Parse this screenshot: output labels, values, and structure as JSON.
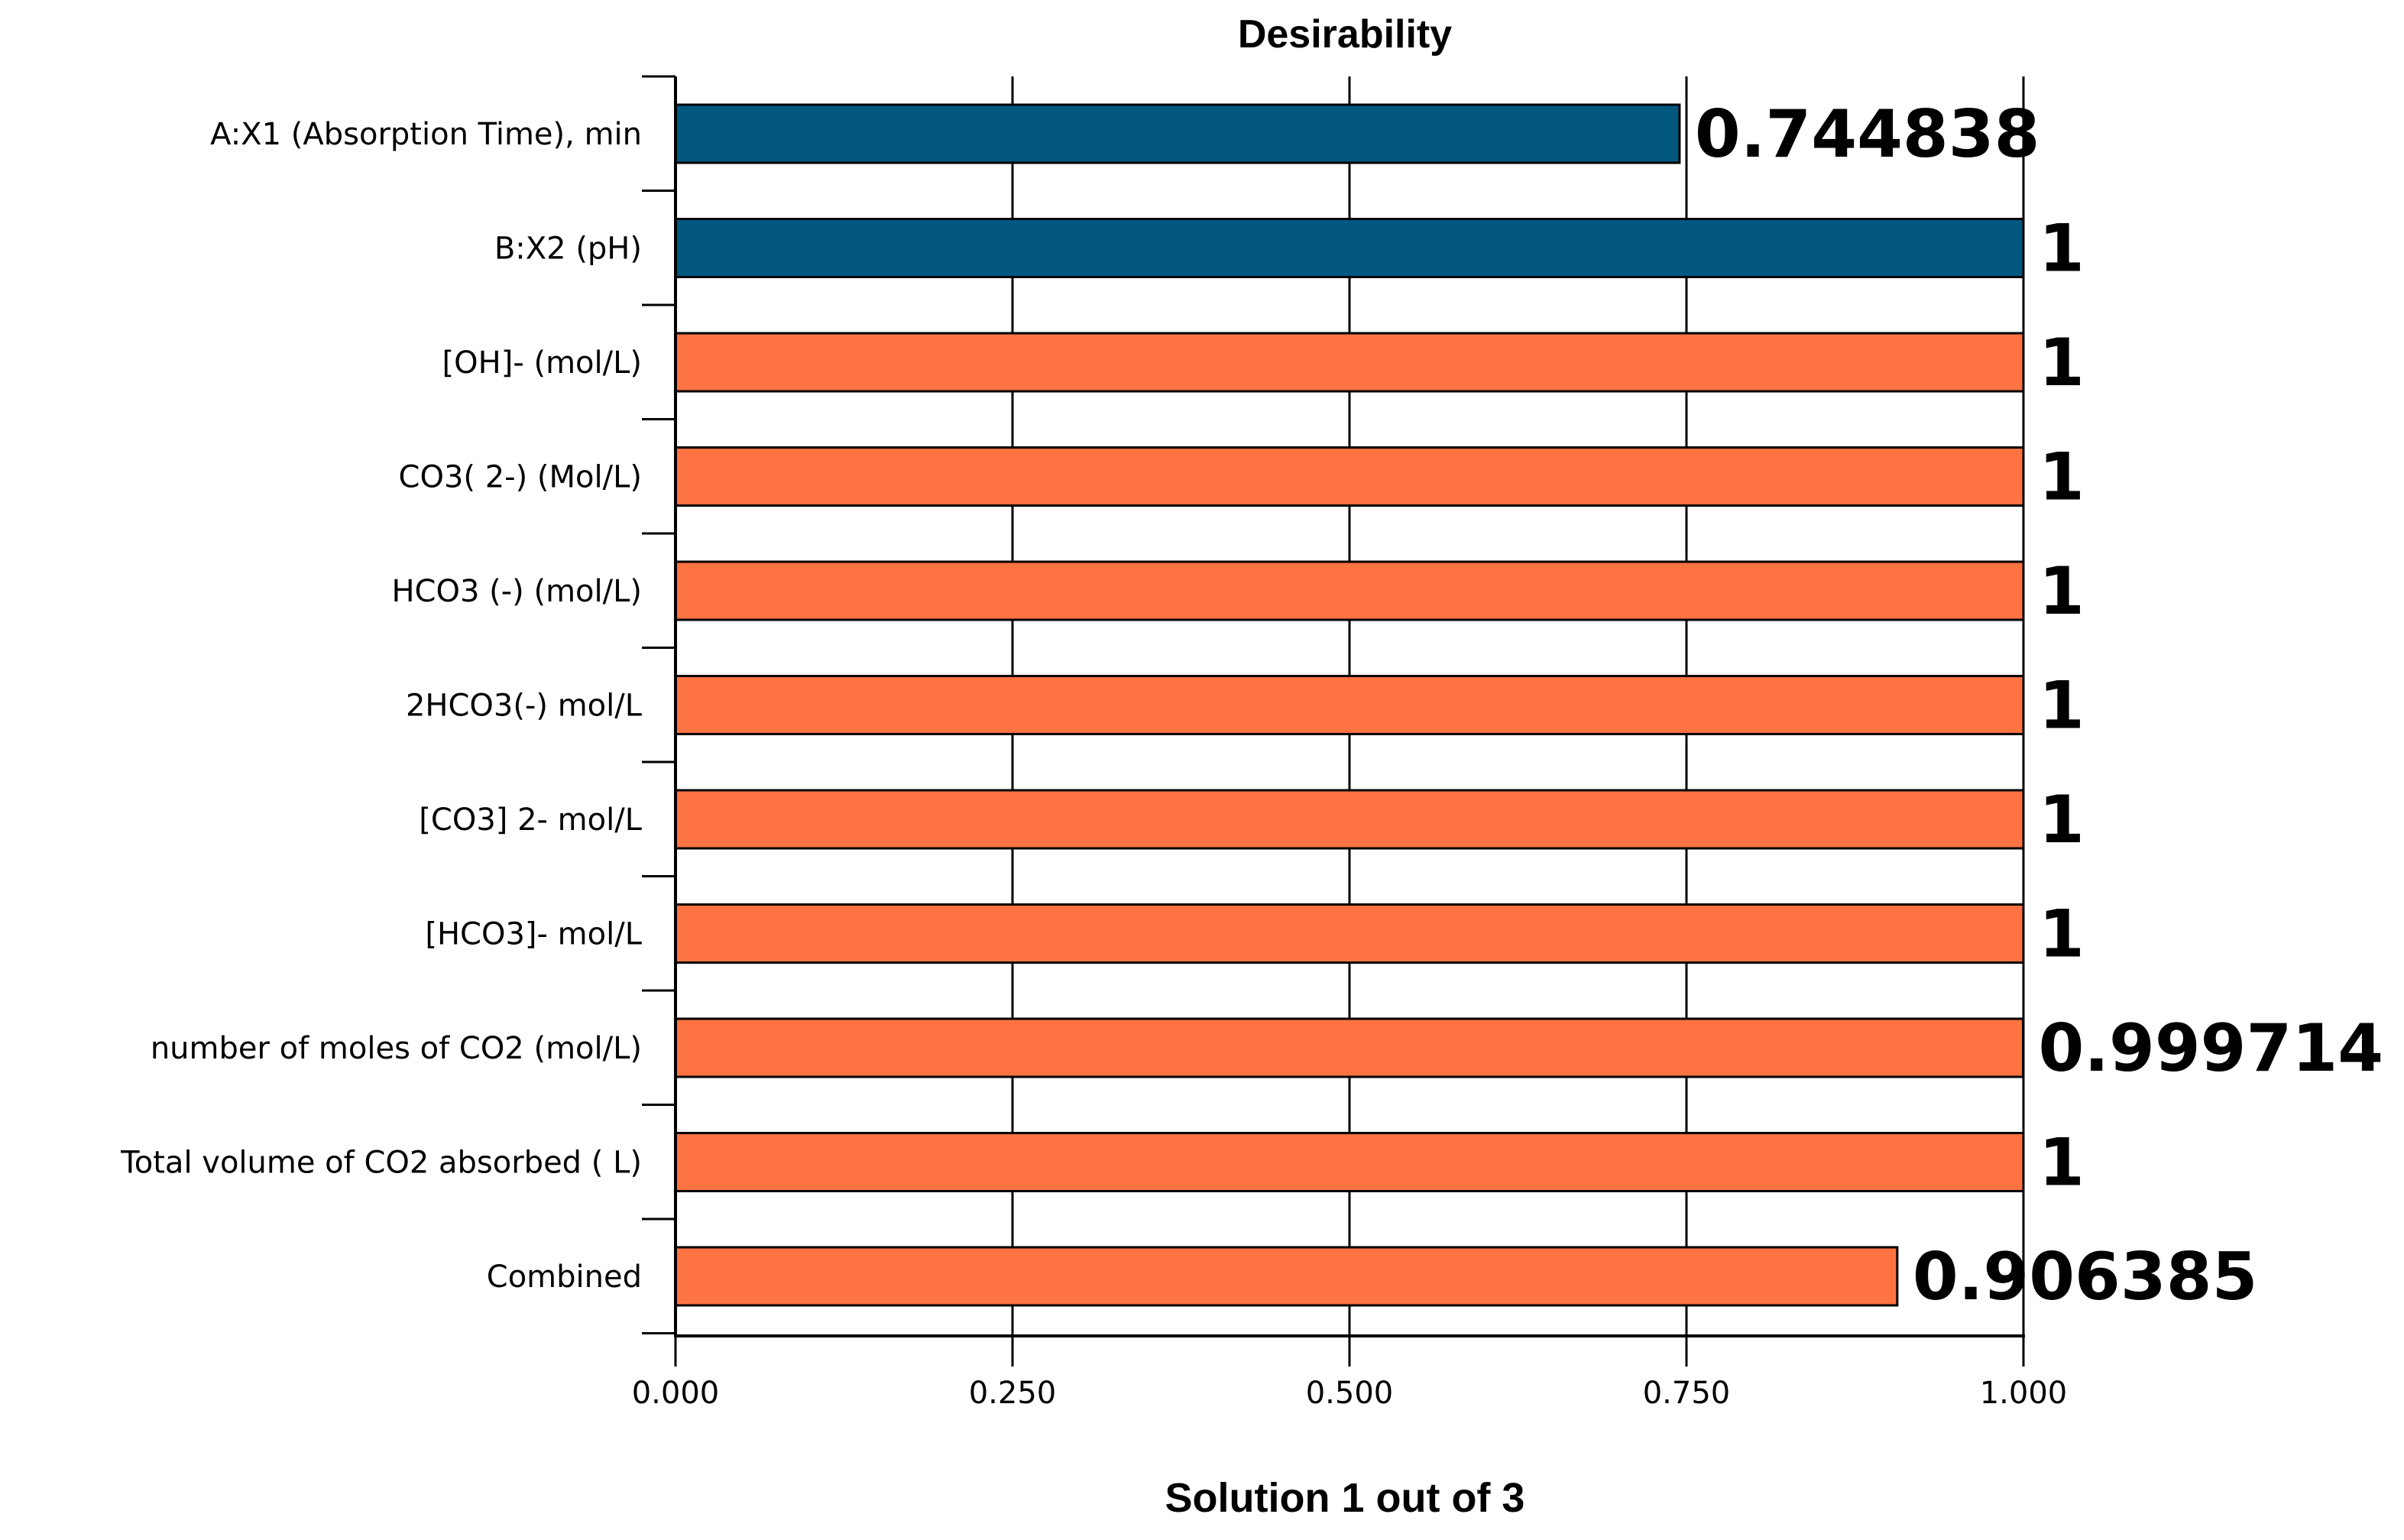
{
  "chart_data": {
    "type": "bar",
    "orientation": "horizontal",
    "title": "Desirability",
    "caption": "Solution 1 out of 3",
    "xlabel": "",
    "ylabel": "",
    "xlim": [
      0,
      1
    ],
    "grid": true,
    "categories": [
      "A:X1 (Absorption Time), min",
      "B:X2 (pH)",
      "[OH]- (mol/L)",
      "CO3( 2-) (Mol/L)",
      "HCO3 (-) (mol/L)",
      "2HCO3(-) mol/L",
      "[CO3] 2- mol/L",
      "[HCO3]- mol/L",
      "number of moles of CO2   (mol/L)",
      "Total volume of CO2 absorbed ( L)",
      "Combined"
    ],
    "values": [
      0.744838,
      1,
      1,
      1,
      1,
      1,
      1,
      1,
      0.999714,
      1,
      0.906385
    ],
    "value_labels": [
      "0.744838",
      "1",
      "1",
      "1",
      "1",
      "1",
      "1",
      "1",
      "0.999714",
      "1",
      "0.906385"
    ],
    "bar_groups": [
      "factor",
      "factor",
      "response",
      "response",
      "response",
      "response",
      "response",
      "response",
      "response",
      "response",
      "response"
    ],
    "x_ticks": [
      0,
      0.25,
      0.5,
      0.75,
      1
    ],
    "x_tick_labels": [
      "0.000",
      "0.250",
      "0.500",
      "0.750",
      "1.000"
    ],
    "colors": {
      "factor": "#02587f",
      "response": "#ff7342",
      "grid": "#000000",
      "axis": "#000000"
    }
  }
}
